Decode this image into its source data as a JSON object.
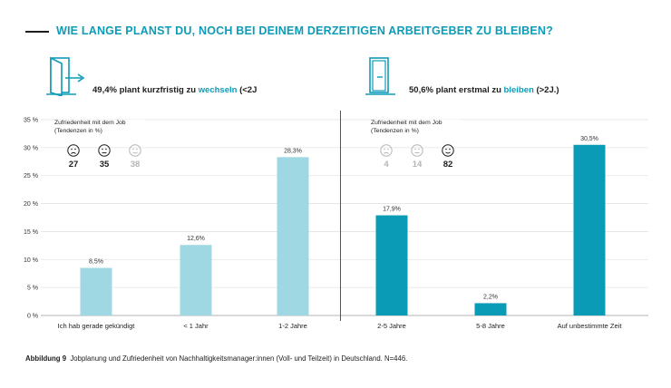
{
  "title": "WIE LANGE PLANST DU, NOCH BEI DEINEM DERZEITIGEN ARBEITGEBER ZU BLEIBEN?",
  "left_header": {
    "text_pre": "49,4% plant kurzfristig zu ",
    "highlight": "wechseln",
    "text_post": " (<2J"
  },
  "right_header": {
    "text_pre": "50,6% plant erstmal zu ",
    "highlight": "bleiben",
    "text_post": " (>2J.)"
  },
  "callout_left": {
    "title_line1": "Zufriedenheit mit dem Job",
    "title_line2": "(Tendenzen in %)",
    "faces": [
      {
        "icon": "sad-face-icon",
        "value": "27",
        "active": true
      },
      {
        "icon": "neutral-face-icon",
        "value": "35",
        "active": true
      },
      {
        "icon": "happy-face-icon",
        "value": "38",
        "active": false
      }
    ]
  },
  "callout_right": {
    "title_line1": "Zufriedenheit mit dem Job",
    "title_line2": "(Tendenzen in %)",
    "faces": [
      {
        "icon": "sad-face-icon",
        "value": "4",
        "active": false
      },
      {
        "icon": "neutral-face-icon",
        "value": "14",
        "active": false
      },
      {
        "icon": "happy-face-icon",
        "value": "82",
        "active": true
      }
    ]
  },
  "colors": {
    "accent": "#0e9bb8",
    "bar_light": "#9fd8e3",
    "bar_dark": "#0a9bb7",
    "muted": "#b5b5b5"
  },
  "caption": {
    "label": "Abbildung 9",
    "text": "Jobplanung und Zufriedenheit von Nachhaltigkeitsmanager:innen (Voll- und Teilzeit) in Deutschland. N=446."
  },
  "chart_data": {
    "type": "bar",
    "categories": [
      "Ich hab gerade gekündigt",
      "< 1 Jahr",
      "1-2 Jahre",
      "2-5 Jahre",
      "5-8 Jahre",
      "Auf unbestimmte Zeit"
    ],
    "values": [
      8.5,
      12.6,
      28.3,
      17.9,
      2.2,
      30.5
    ],
    "value_labels": [
      "8,5%",
      "12,6%",
      "28,3%",
      "17,9%",
      "2,2%",
      "30,5%"
    ],
    "groups": [
      "wechseln",
      "wechseln",
      "wechseln",
      "bleiben",
      "bleiben",
      "bleiben"
    ],
    "yticks": [
      0,
      5,
      10,
      15,
      20,
      25,
      30,
      35
    ],
    "ytick_labels": [
      "0 %",
      "5 %",
      "10 %",
      "15 %",
      "20 %",
      "25 %",
      "30 %",
      "35 %"
    ],
    "ylim": [
      0,
      35
    ],
    "grid": true,
    "xlabel": "",
    "ylabel": ""
  }
}
